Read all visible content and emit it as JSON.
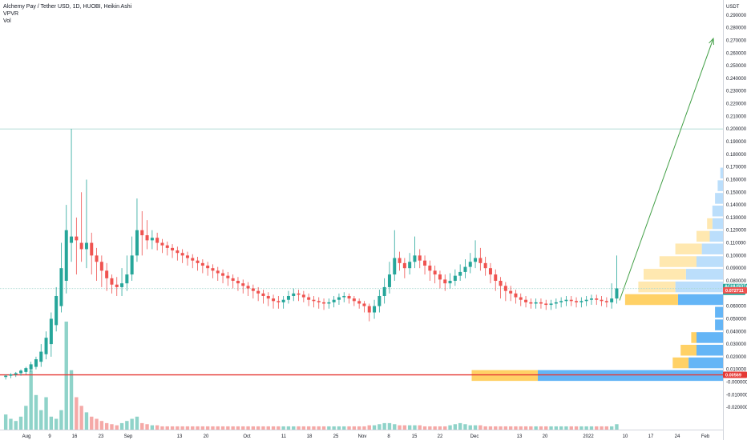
{
  "legend": {
    "title": "Alchemy Pay / Tether USD, 1D, HUOBI, Heikin Ashi",
    "indicator1": "VPVR",
    "indicator2": "Vol"
  },
  "price_axis": {
    "currency": "USDT",
    "labels": [
      "0.290000",
      "0.280000",
      "0.270000",
      "0.260000",
      "0.250000",
      "0.240000",
      "0.230000",
      "0.220000",
      "0.210000",
      "0.200000",
      "0.190000",
      "0.180000",
      "0.170000",
      "0.160000",
      "0.150000",
      "0.140000",
      "0.130000",
      "0.120000",
      "0.110000",
      "0.100000",
      "0.090000",
      "0.080000",
      "0.060000",
      "0.050000",
      "0.040000",
      "0.030000",
      "0.020000",
      "0.010000",
      "-0.000000",
      "-0.010000",
      "-0.020000"
    ]
  },
  "time_axis": {
    "labels": [
      "Aug",
      "9",
      "16",
      "23",
      "Sep",
      "13",
      "20",
      "Oct",
      "11",
      "18",
      "25",
      "Nov",
      "8",
      "15",
      "22",
      "Dec",
      "13",
      "20",
      "2022",
      "10",
      "17",
      "24",
      "Feb"
    ]
  },
  "markers": {
    "ticker": "ACHUSDT",
    "last_price": "0.073866",
    "countdown": "05:53:28",
    "level_price": "0.072711",
    "support_price": "0.00569"
  },
  "colors": {
    "up": "#26a69a",
    "down": "#ef5350",
    "up_volume": "#8fd3c9",
    "down_volume": "#f5a9a7",
    "arrow": "#43a047",
    "support_line": "#e53935",
    "vp_value_area_up": "#64b5f6",
    "vp_value_area_down": "#ffd166",
    "vp_up": "#bbdefb",
    "vp_down": "#ffe8b0"
  },
  "chart_data": {
    "type": "candlestick",
    "title": "Alchemy Pay / Tether USD, 1D, HUOBI, Heikin Ashi",
    "yunit": "USDT",
    "ylim": [
      -0.03,
      0.3
    ],
    "horizontal_lines": [
      0.2,
      0.073866,
      0.00569
    ],
    "projection_arrow": {
      "from": 0.0645,
      "to": 0.2715
    },
    "candles": [
      [
        0.004,
        0.005,
        0.002,
        0.006
      ],
      [
        0.005,
        0.006,
        0.003,
        0.007
      ],
      [
        0.006,
        0.007,
        0.004,
        0.008
      ],
      [
        0.007,
        0.009,
        0.005,
        0.01
      ],
      [
        0.008,
        0.011,
        0.006,
        0.012
      ],
      [
        0.01,
        0.014,
        0.008,
        0.016
      ],
      [
        0.012,
        0.018,
        0.01,
        0.02
      ],
      [
        0.016,
        0.024,
        0.012,
        0.03
      ],
      [
        0.022,
        0.035,
        0.018,
        0.04
      ],
      [
        0.03,
        0.05,
        0.02,
        0.055
      ],
      [
        0.045,
        0.068,
        0.04,
        0.075
      ],
      [
        0.06,
        0.09,
        0.055,
        0.11
      ],
      [
        0.08,
        0.12,
        0.07,
        0.14
      ],
      [
        0.11,
        0.115,
        0.095,
        0.2
      ],
      [
        0.115,
        0.112,
        0.085,
        0.13
      ],
      [
        0.11,
        0.105,
        0.095,
        0.15
      ],
      [
        0.105,
        0.11,
        0.09,
        0.16
      ],
      [
        0.11,
        0.1,
        0.085,
        0.118
      ],
      [
        0.1,
        0.095,
        0.08,
        0.106
      ],
      [
        0.095,
        0.088,
        0.075,
        0.1
      ],
      [
        0.088,
        0.082,
        0.072,
        0.094
      ],
      [
        0.082,
        0.077,
        0.07,
        0.085
      ],
      [
        0.077,
        0.075,
        0.068,
        0.083
      ],
      [
        0.075,
        0.078,
        0.068,
        0.09
      ],
      [
        0.078,
        0.085,
        0.072,
        0.1
      ],
      [
        0.085,
        0.1,
        0.08,
        0.115
      ],
      [
        0.1,
        0.12,
        0.095,
        0.145
      ],
      [
        0.12,
        0.116,
        0.1,
        0.135
      ],
      [
        0.116,
        0.112,
        0.105,
        0.128
      ],
      [
        0.112,
        0.114,
        0.105,
        0.12
      ],
      [
        0.114,
        0.11,
        0.104,
        0.118
      ],
      [
        0.11,
        0.108,
        0.102,
        0.113
      ],
      [
        0.108,
        0.106,
        0.1,
        0.111
      ],
      [
        0.106,
        0.104,
        0.098,
        0.109
      ],
      [
        0.104,
        0.102,
        0.096,
        0.107
      ],
      [
        0.102,
        0.1,
        0.094,
        0.105
      ],
      [
        0.1,
        0.098,
        0.092,
        0.103
      ],
      [
        0.098,
        0.096,
        0.09,
        0.101
      ],
      [
        0.096,
        0.094,
        0.088,
        0.099
      ],
      [
        0.094,
        0.092,
        0.086,
        0.097
      ],
      [
        0.092,
        0.09,
        0.084,
        0.095
      ],
      [
        0.09,
        0.088,
        0.082,
        0.093
      ],
      [
        0.088,
        0.086,
        0.08,
        0.091
      ],
      [
        0.086,
        0.084,
        0.078,
        0.089
      ],
      [
        0.084,
        0.082,
        0.076,
        0.087
      ],
      [
        0.082,
        0.08,
        0.074,
        0.085
      ],
      [
        0.08,
        0.078,
        0.072,
        0.083
      ],
      [
        0.078,
        0.076,
        0.07,
        0.081
      ],
      [
        0.076,
        0.074,
        0.068,
        0.079
      ],
      [
        0.074,
        0.072,
        0.066,
        0.077
      ],
      [
        0.072,
        0.07,
        0.064,
        0.075
      ],
      [
        0.07,
        0.068,
        0.062,
        0.073
      ],
      [
        0.068,
        0.066,
        0.06,
        0.071
      ],
      [
        0.066,
        0.064,
        0.058,
        0.069
      ],
      [
        0.064,
        0.063,
        0.058,
        0.068
      ],
      [
        0.063,
        0.065,
        0.058,
        0.068
      ],
      [
        0.065,
        0.068,
        0.062,
        0.072
      ],
      [
        0.068,
        0.07,
        0.064,
        0.074
      ],
      [
        0.07,
        0.069,
        0.064,
        0.073
      ],
      [
        0.069,
        0.067,
        0.063,
        0.072
      ],
      [
        0.067,
        0.065,
        0.06,
        0.07
      ],
      [
        0.065,
        0.064,
        0.059,
        0.068
      ],
      [
        0.064,
        0.063,
        0.058,
        0.067
      ],
      [
        0.063,
        0.062,
        0.057,
        0.066
      ],
      [
        0.062,
        0.063,
        0.058,
        0.066
      ],
      [
        0.063,
        0.065,
        0.059,
        0.068
      ],
      [
        0.065,
        0.067,
        0.061,
        0.07
      ],
      [
        0.067,
        0.068,
        0.063,
        0.071
      ],
      [
        0.068,
        0.066,
        0.062,
        0.07
      ],
      [
        0.066,
        0.064,
        0.06,
        0.068
      ],
      [
        0.064,
        0.062,
        0.058,
        0.066
      ],
      [
        0.062,
        0.06,
        0.055,
        0.064
      ],
      [
        0.06,
        0.055,
        0.048,
        0.062
      ],
      [
        0.055,
        0.06,
        0.05,
        0.065
      ],
      [
        0.06,
        0.068,
        0.055,
        0.073
      ],
      [
        0.068,
        0.075,
        0.062,
        0.082
      ],
      [
        0.075,
        0.085,
        0.07,
        0.095
      ],
      [
        0.085,
        0.098,
        0.08,
        0.12
      ],
      [
        0.098,
        0.094,
        0.088,
        0.103
      ],
      [
        0.094,
        0.09,
        0.082,
        0.098
      ],
      [
        0.09,
        0.095,
        0.085,
        0.102
      ],
      [
        0.095,
        0.1,
        0.09,
        0.115
      ],
      [
        0.1,
        0.096,
        0.09,
        0.105
      ],
      [
        0.096,
        0.092,
        0.085,
        0.1
      ],
      [
        0.092,
        0.088,
        0.08,
        0.096
      ],
      [
        0.088,
        0.085,
        0.078,
        0.092
      ],
      [
        0.085,
        0.081,
        0.074,
        0.088
      ],
      [
        0.081,
        0.078,
        0.072,
        0.085
      ],
      [
        0.078,
        0.08,
        0.074,
        0.086
      ],
      [
        0.08,
        0.084,
        0.076,
        0.089
      ],
      [
        0.084,
        0.087,
        0.08,
        0.093
      ],
      [
        0.087,
        0.091,
        0.082,
        0.097
      ],
      [
        0.091,
        0.095,
        0.086,
        0.102
      ],
      [
        0.095,
        0.098,
        0.09,
        0.112
      ],
      [
        0.098,
        0.094,
        0.088,
        0.106
      ],
      [
        0.094,
        0.09,
        0.084,
        0.099
      ],
      [
        0.09,
        0.085,
        0.078,
        0.094
      ],
      [
        0.085,
        0.08,
        0.072,
        0.089
      ],
      [
        0.08,
        0.076,
        0.066,
        0.083
      ],
      [
        0.076,
        0.072,
        0.064,
        0.079
      ],
      [
        0.072,
        0.07,
        0.064,
        0.076
      ],
      [
        0.07,
        0.067,
        0.062,
        0.073
      ],
      [
        0.067,
        0.065,
        0.06,
        0.07
      ],
      [
        0.065,
        0.063,
        0.059,
        0.068
      ],
      [
        0.063,
        0.062,
        0.058,
        0.066
      ],
      [
        0.062,
        0.063,
        0.058,
        0.066
      ],
      [
        0.063,
        0.062,
        0.058,
        0.066
      ],
      [
        0.062,
        0.061,
        0.057,
        0.065
      ],
      [
        0.061,
        0.062,
        0.057,
        0.065
      ],
      [
        0.062,
        0.063,
        0.058,
        0.066
      ],
      [
        0.063,
        0.064,
        0.059,
        0.067
      ],
      [
        0.064,
        0.065,
        0.06,
        0.068
      ],
      [
        0.065,
        0.064,
        0.06,
        0.068
      ],
      [
        0.064,
        0.063,
        0.059,
        0.067
      ],
      [
        0.063,
        0.064,
        0.059,
        0.067
      ],
      [
        0.064,
        0.065,
        0.06,
        0.068
      ],
      [
        0.065,
        0.066,
        0.061,
        0.069
      ],
      [
        0.066,
        0.065,
        0.061,
        0.069
      ],
      [
        0.065,
        0.064,
        0.06,
        0.068
      ],
      [
        0.064,
        0.063,
        0.059,
        0.067
      ],
      [
        0.063,
        0.066,
        0.058,
        0.078
      ],
      [
        0.066,
        0.074,
        0.062,
        0.1
      ]
    ],
    "volume": [
      0.14,
      0.1,
      0.08,
      0.12,
      0.22,
      0.55,
      0.32,
      0.18,
      0.3,
      0.12,
      0.1,
      0.18,
      1.0,
      0.55,
      0.3,
      0.22,
      0.16,
      0.12,
      0.1,
      0.08,
      0.06,
      0.05,
      0.04,
      0.06,
      0.08,
      0.1,
      0.12,
      0.06,
      0.05,
      0.04,
      0.04,
      0.03,
      0.03,
      0.03,
      0.03,
      0.03,
      0.03,
      0.03,
      0.03,
      0.03,
      0.03,
      0.03,
      0.03,
      0.03,
      0.03,
      0.03,
      0.03,
      0.03,
      0.03,
      0.03,
      0.03,
      0.03,
      0.03,
      0.03,
      0.03,
      0.03,
      0.03,
      0.03,
      0.03,
      0.03,
      0.03,
      0.03,
      0.03,
      0.03,
      0.03,
      0.03,
      0.03,
      0.03,
      0.03,
      0.03,
      0.03,
      0.03,
      0.04,
      0.04,
      0.05,
      0.06,
      0.06,
      0.05,
      0.04,
      0.04,
      0.04,
      0.04,
      0.04,
      0.03,
      0.03,
      0.03,
      0.03,
      0.03,
      0.04,
      0.05,
      0.06,
      0.05,
      0.04,
      0.04,
      0.04,
      0.03,
      0.03,
      0.03,
      0.03,
      0.03,
      0.03,
      0.03,
      0.03,
      0.03,
      0.03,
      0.03,
      0.03,
      0.03,
      0.03,
      0.03,
      0.03,
      0.03,
      0.03,
      0.03,
      0.03,
      0.03,
      0.03,
      0.03,
      0.03,
      0.03,
      0.03,
      0.05
    ],
    "volume_profile": [
      {
        "price": 0.075,
        "up": 0.18,
        "down": 0.14,
        "in_value_area": false
      },
      {
        "price": 0.085,
        "up": 0.14,
        "down": 0.16,
        "in_value_area": false
      },
      {
        "price": 0.095,
        "up": 0.1,
        "down": 0.14,
        "in_value_area": false
      },
      {
        "price": 0.105,
        "up": 0.08,
        "down": 0.1,
        "in_value_area": false
      },
      {
        "price": 0.115,
        "up": 0.05,
        "down": 0.05,
        "in_value_area": false
      },
      {
        "price": 0.125,
        "up": 0.04,
        "down": 0.02,
        "in_value_area": false
      },
      {
        "price": 0.135,
        "up": 0.04,
        "down": 0.0,
        "in_value_area": false
      },
      {
        "price": 0.145,
        "up": 0.03,
        "down": 0.0,
        "in_value_area": false
      },
      {
        "price": 0.155,
        "up": 0.02,
        "down": 0.0,
        "in_value_area": false
      },
      {
        "price": 0.165,
        "up": 0.01,
        "down": 0.0,
        "in_value_area": false
      },
      {
        "price": 0.065,
        "up": 0.17,
        "down": 0.2,
        "in_value_area": true
      },
      {
        "price": 0.055,
        "up": 0.03,
        "down": 0.0,
        "in_value_area": true
      },
      {
        "price": 0.045,
        "up": 0.03,
        "down": 0.0,
        "in_value_area": true
      },
      {
        "price": 0.035,
        "up": 0.1,
        "down": 0.02,
        "in_value_area": true
      },
      {
        "price": 0.025,
        "up": 0.1,
        "down": 0.06,
        "in_value_area": true
      },
      {
        "price": 0.015,
        "up": 0.13,
        "down": 0.06,
        "in_value_area": true
      },
      {
        "price": 0.005,
        "up": 0.7,
        "down": 0.25,
        "in_value_area": true
      }
    ]
  }
}
